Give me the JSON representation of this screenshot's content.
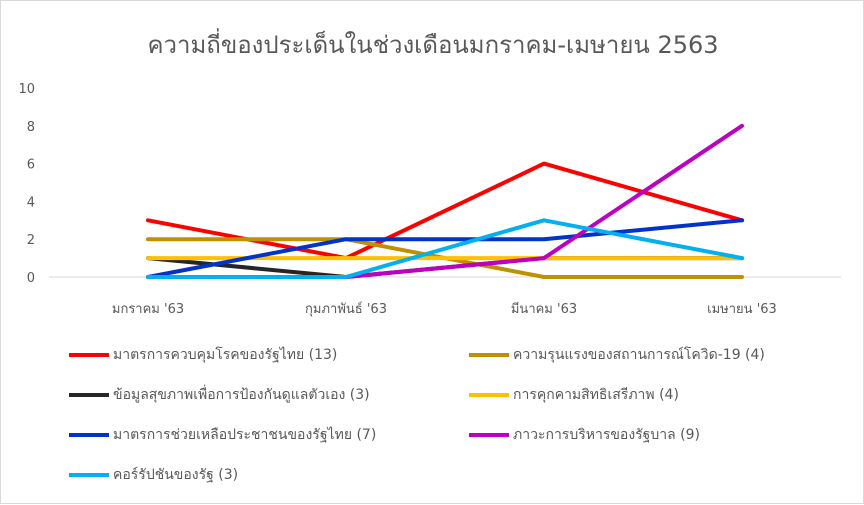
{
  "chart_data": {
    "type": "line",
    "title": "ความถี่ของประเด็นในช่วงเดือนมกราคม-เมษายน 2563",
    "xlabel": "",
    "ylabel": "",
    "categories": [
      "มกราคม '63",
      "กุมภาพันธ์ '63",
      "มีนาคม '63",
      "เมษายน '63"
    ],
    "ylim": [
      0,
      10
    ],
    "yticks": [
      "0",
      "2",
      "4",
      "6",
      "8",
      "10"
    ],
    "grid": false,
    "legend_position": "bottom",
    "series": [
      {
        "name": "มาตรการควบคุมโรคของรัฐไทย (13)",
        "color": "#ff0000",
        "values": [
          3,
          1,
          6,
          3
        ]
      },
      {
        "name": "ความรุนแรงของสถานการณ์โควิด-19 (4)",
        "color": "#bf9000",
        "values": [
          2,
          2,
          0,
          0
        ]
      },
      {
        "name": "ข้อมูลสุขภาพเพื่อการป้องกันดูแลตัวเอง (3)",
        "color": "#262626",
        "values": [
          1,
          0,
          1,
          1
        ]
      },
      {
        "name": "การคุกคามสิทธิเสรีภาพ (4)",
        "color": "#ffc000",
        "values": [
          1,
          1,
          1,
          1
        ]
      },
      {
        "name": "มาตรการช่วยเหลือประชาชนของรัฐไทย (7)",
        "color": "#0033cc",
        "values": [
          0,
          2,
          2,
          3
        ]
      },
      {
        "name": "ภาวะการบริหารของรัฐบาล (9)",
        "color": "#c000c0",
        "values": [
          0,
          0,
          1,
          8
        ]
      },
      {
        "name": "คอร์รัปชันของรัฐ (3)",
        "color": "#00b0f0",
        "values": [
          0,
          0,
          3,
          1
        ]
      }
    ]
  }
}
